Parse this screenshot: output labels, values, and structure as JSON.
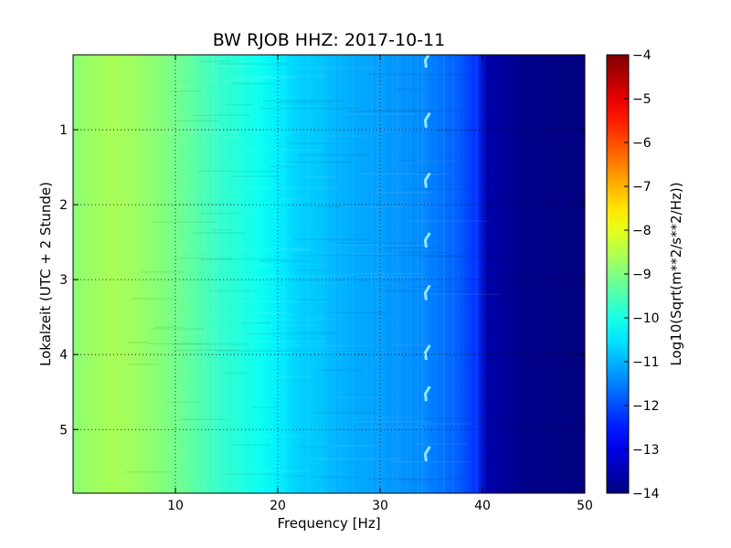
{
  "chart_data": {
    "type": "heatmap",
    "title": "BW RJOB HHZ: 2017-10-11",
    "xlabel": "Frequency [Hz]",
    "ylabel": "Lokalzeit (UTC + 2 Stunde)",
    "xlim": [
      0,
      50
    ],
    "ylim": [
      5.85,
      0
    ],
    "x_ticks": [
      10,
      20,
      30,
      40,
      50
    ],
    "x_tick_labels": [
      "10",
      "20",
      "30",
      "40",
      "50"
    ],
    "y_ticks": [
      1,
      2,
      3,
      4,
      5
    ],
    "y_tick_labels": [
      "1",
      "2",
      "3",
      "4",
      "5"
    ],
    "grid": true,
    "colormap": "jet",
    "colorbar": {
      "label": "Log10(Sqrt(m**2/s**2/Hz))",
      "range": [
        -14,
        -4
      ],
      "ticks": [
        -4,
        -5,
        -6,
        -7,
        -8,
        -9,
        -10,
        -11,
        -12,
        -13,
        -14
      ],
      "tick_labels": [
        "−4",
        "−5",
        "−6",
        "−7",
        "−8",
        "−9",
        "−10",
        "−11",
        "−12",
        "−13",
        "−14"
      ]
    },
    "spectral_profile": {
      "frequency_hz": [
        0,
        2,
        4,
        6,
        8,
        10,
        12,
        14,
        16,
        18,
        20,
        22,
        24,
        26,
        28,
        30,
        32,
        34,
        36,
        38,
        39.5,
        40.5,
        44,
        50
      ],
      "log10_amplitude": [
        -8.9,
        -8.7,
        -8.6,
        -8.7,
        -8.9,
        -9.1,
        -9.4,
        -9.7,
        -9.9,
        -10.1,
        -10.4,
        -10.7,
        -10.8,
        -11.0,
        -11.1,
        -11.2,
        -11.3,
        -11.4,
        -11.6,
        -11.9,
        -12.3,
        -13.6,
        -13.9,
        -14.0
      ]
    },
    "features": [
      {
        "type": "narrowband_spikes",
        "frequency_hz": 34.5,
        "times_h": [
          0.05,
          0.85,
          1.65,
          2.45,
          3.15,
          3.95,
          4.5,
          5.3
        ]
      }
    ]
  }
}
